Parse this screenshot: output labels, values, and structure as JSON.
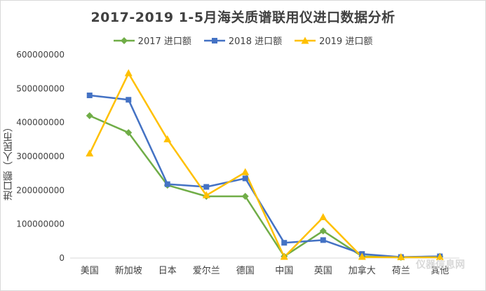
{
  "chart_data": {
    "type": "line",
    "title": "2017-2019 1-5月海关质谱联用仪进口数据分析",
    "ylabel": "进口额（人民币）",
    "xlabel": "",
    "categories": [
      "美国",
      "新加坡",
      "日本",
      "爱尔兰",
      "德国",
      "中国",
      "英国",
      "加拿大",
      "荷兰",
      "其他"
    ],
    "ylim": [
      0,
      600000000
    ],
    "yticks": [
      "0",
      "100000000",
      "200000000",
      "300000000",
      "400000000",
      "500000000",
      "600000000"
    ],
    "ytick_values": [
      0,
      100000000,
      200000000,
      300000000,
      400000000,
      500000000,
      600000000
    ],
    "grid": false,
    "legend_position": "top",
    "series": [
      {
        "name": "2017 进口额",
        "color": "#70ad47",
        "marker": "diamond",
        "values": [
          420000000,
          370000000,
          215000000,
          182000000,
          182000000,
          5000000,
          80000000,
          5000000,
          2000000,
          5000000
        ]
      },
      {
        "name": "2018 进口额",
        "color": "#4472c4",
        "marker": "square",
        "values": [
          480000000,
          467000000,
          218000000,
          210000000,
          235000000,
          45000000,
          53000000,
          12000000,
          3000000,
          5000000
        ]
      },
      {
        "name": "2019 进口额",
        "color": "#ffc000",
        "marker": "triangle",
        "values": [
          308000000,
          545000000,
          350000000,
          185000000,
          253000000,
          3000000,
          120000000,
          3000000,
          2000000,
          2000000
        ]
      }
    ]
  },
  "watermark": "仪器信息网"
}
